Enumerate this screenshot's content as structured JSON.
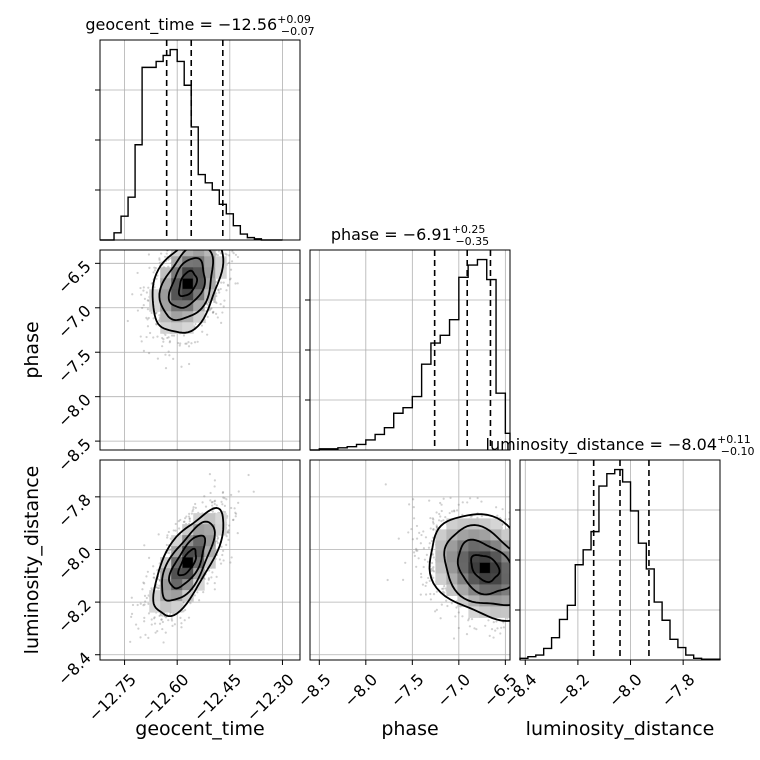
{
  "figure": {
    "background": "#ffffff",
    "grid_color": "#b0b0b0",
    "hist_color": "#000000",
    "contour_color": "#000000"
  },
  "chart_data": [
    {
      "type": "histogram",
      "panel": "geocent_time",
      "title": "geocent_time = −12.56",
      "title_plus": "+0.09",
      "title_minus": "−0.07",
      "grid": true,
      "xlim": [
        -12.82,
        -12.25
      ],
      "bin_edges": [
        -12.82,
        -12.8,
        -12.78,
        -12.76,
        -12.74,
        -12.72,
        -12.7,
        -12.68,
        -12.66,
        -12.64,
        -12.62,
        -12.6,
        -12.58,
        -12.56,
        -12.54,
        -12.52,
        -12.5,
        -12.48,
        -12.46,
        -12.44,
        -12.42,
        -12.4,
        -12.38,
        -12.36,
        -12.34,
        -12.32,
        -12.3
      ],
      "counts": [
        0,
        0,
        6,
        20,
        36,
        80,
        145,
        145,
        150,
        155,
        160,
        150,
        130,
        95,
        55,
        48,
        42,
        30,
        22,
        12,
        5,
        2,
        1,
        0,
        0,
        0
      ],
      "quantiles": [
        -12.63,
        -12.56,
        -12.47
      ]
    },
    {
      "type": "histogram",
      "panel": "phase",
      "title": "phase = −6.91",
      "title_plus": "+0.25",
      "title_minus": "−0.35",
      "grid": true,
      "xlim": [
        -8.6,
        -6.45
      ],
      "bin_edges": [
        -8.6,
        -8.5,
        -8.4,
        -8.3,
        -8.2,
        -8.1,
        -8.0,
        -7.9,
        -7.8,
        -7.7,
        -7.6,
        -7.5,
        -7.4,
        -7.3,
        -7.2,
        -7.1,
        -7.0,
        -6.9,
        -6.8,
        -6.7,
        -6.6,
        -6.5,
        -6.45
      ],
      "counts": [
        0,
        1,
        1,
        2,
        3,
        5,
        9,
        14,
        20,
        33,
        38,
        48,
        77,
        96,
        103,
        117,
        155,
        166,
        171,
        153,
        51,
        15
      ],
      "quantiles": [
        -7.26,
        -6.91,
        -6.66
      ]
    },
    {
      "type": "histogram",
      "panel": "luminosity_distance",
      "title": "luminosity_distance = −8.04",
      "title_plus": "+0.11",
      "title_minus": "−0.10",
      "grid": true,
      "xlim": [
        -8.42,
        -7.66
      ],
      "bin_edges": [
        -8.42,
        -8.39,
        -8.36,
        -8.33,
        -8.3,
        -8.27,
        -8.24,
        -8.21,
        -8.18,
        -8.15,
        -8.12,
        -8.09,
        -8.06,
        -8.03,
        -8.0,
        -7.97,
        -7.94,
        -7.91,
        -7.88,
        -7.85,
        -7.82,
        -7.79,
        -7.76,
        -7.73,
        -7.7,
        -7.66
      ],
      "counts": [
        2,
        4,
        6,
        14,
        27,
        49,
        66,
        115,
        133,
        155,
        210,
        225,
        230,
        215,
        180,
        141,
        110,
        70,
        48,
        25,
        15,
        6,
        2,
        1,
        1
      ],
      "quantiles": [
        -8.14,
        -8.04,
        -7.93
      ]
    },
    {
      "type": "scatter-contour",
      "panel": "phase_vs_geocent_time",
      "x": "geocent_time",
      "y": "phase",
      "xlim": [
        -12.82,
        -12.25
      ],
      "ylim": [
        -8.6,
        -6.35
      ],
      "center": [
        -12.57,
        -6.73
      ],
      "sigma": [
        0.05,
        0.28
      ],
      "rho": 0.4,
      "grid": true
    },
    {
      "type": "scatter-contour",
      "panel": "luminosity_distance_vs_geocent_time",
      "x": "geocent_time",
      "y": "luminosity_distance",
      "xlim": [
        -12.82,
        -12.25
      ],
      "ylim": [
        -8.42,
        -7.66
      ],
      "center": [
        -12.57,
        -8.05
      ],
      "sigma": [
        0.05,
        0.1
      ],
      "rho": 0.7,
      "grid": true
    },
    {
      "type": "scatter-contour",
      "panel": "luminosity_distance_vs_phase",
      "x": "phase",
      "y": "luminosity_distance",
      "xlim": [
        -8.6,
        -6.45
      ],
      "ylim": [
        -8.42,
        -7.66
      ],
      "center": [
        -6.72,
        -8.07
      ],
      "sigma": [
        0.3,
        0.1
      ],
      "rho": -0.3,
      "grid": true
    }
  ],
  "axes": {
    "geocent_time": {
      "label": "geocent_time",
      "ticks": [
        -12.75,
        -12.6,
        -12.45,
        -12.3
      ],
      "tick_labels": [
        "−12.75",
        "−12.60",
        "−12.45",
        "−12.30"
      ]
    },
    "phase": {
      "label": "phase",
      "ticks": [
        -8.5,
        -8.0,
        -7.5,
        -7.0,
        -6.5
      ],
      "tick_labels": [
        "−8.5",
        "−8.0",
        "−7.5",
        "−7.0",
        "−6.5"
      ]
    },
    "luminosity_distance": {
      "label": "luminosity_distance",
      "ticks": [
        -8.4,
        -8.2,
        -8.0,
        -7.8
      ],
      "tick_labels": [
        "−8.4",
        "−8.2",
        "−8.0",
        "−7.8"
      ]
    }
  }
}
